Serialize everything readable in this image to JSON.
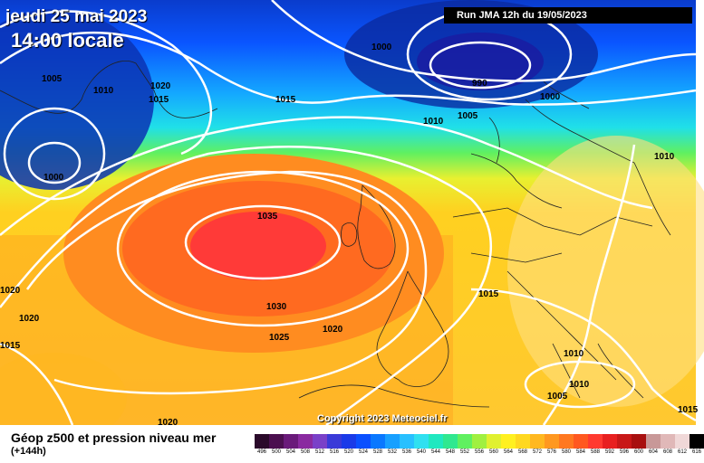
{
  "header": {
    "date": "jeudi 25 mai 2023",
    "time": "14:00 locale",
    "run": "Run JMA 12h du 19/05/2023"
  },
  "copyright": "Copyright 2023 Meteociel.fr",
  "footer": {
    "title": "Géop z500 et pression niveau mer",
    "subtitle": "(+144h)"
  },
  "isobar_labels": [
    "1005",
    "1010",
    "1020",
    "1015",
    "1000",
    "1000",
    "990",
    "1000",
    "1005",
    "1010",
    "1015",
    "1010",
    "1035",
    "1030",
    "1025",
    "1020",
    "1020",
    "1020",
    "1015",
    "1015",
    "1010",
    "1010",
    "1005",
    "1020",
    "1015"
  ],
  "scale": {
    "labels": [
      "496",
      "500",
      "504",
      "508",
      "512",
      "516",
      "520",
      "524",
      "528",
      "532",
      "536",
      "540",
      "544",
      "548",
      "552",
      "556",
      "560",
      "564",
      "568",
      "572",
      "576",
      "580",
      "584",
      "588",
      "592",
      "596",
      "600",
      "604",
      "608",
      "612",
      "616"
    ],
    "colors": [
      "#2a0a2a",
      "#4b0f4f",
      "#6a1a7a",
      "#8a2aa0",
      "#7a40c8",
      "#3a3ad8",
      "#1a3ae8",
      "#0a50ff",
      "#0a78ff",
      "#18a0ff",
      "#28c0ff",
      "#30e0f0",
      "#20e8c0",
      "#30e890",
      "#60f060",
      "#a0f040",
      "#e0f030",
      "#fff020",
      "#ffd820",
      "#ffb820",
      "#ff9820",
      "#ff7820",
      "#ff5820",
      "#ff3a30",
      "#e82020",
      "#c81818",
      "#a81010",
      "#c89898",
      "#e0b8b8",
      "#f0d8d8",
      "#000000"
    ]
  }
}
